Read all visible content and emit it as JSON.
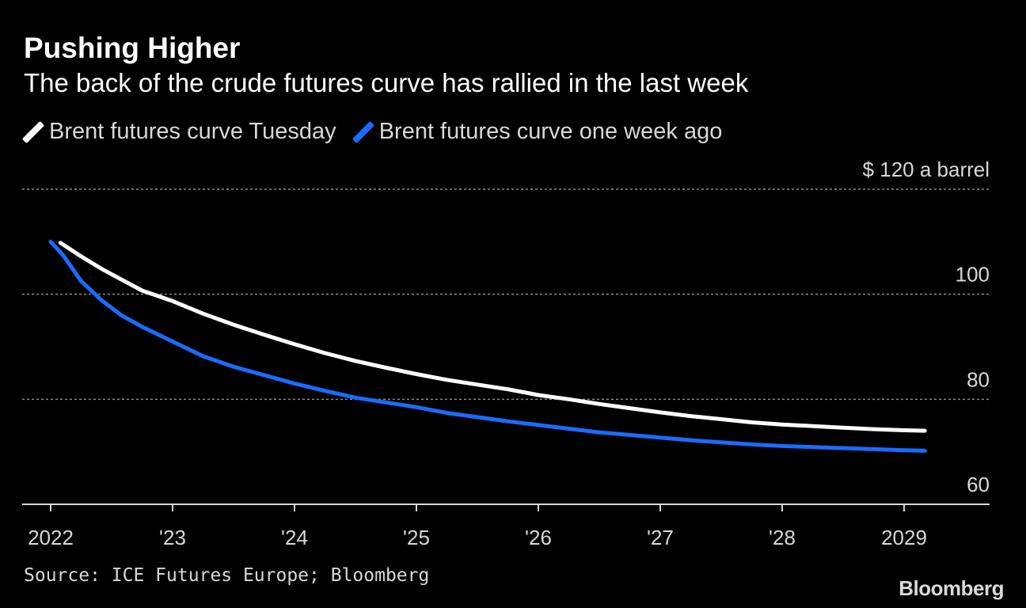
{
  "colors": {
    "background": "#000000",
    "series_tuesday": "#ffffff",
    "series_week_ago": "#1a6cff",
    "grid": "#8a8a8a",
    "axis": "#d8d8d8"
  },
  "source": "Source: ICE Futures Europe; Bloomberg",
  "brand": "Bloomberg",
  "chart_data": {
    "type": "line",
    "title": "Pushing Higher",
    "subtitle": "The back of the crude futures curve has rallied in the last week",
    "y_unit_label": "$ 120 a barrel",
    "ylim": [
      60,
      120
    ],
    "yticks": [
      60,
      80,
      100,
      120
    ],
    "ytick_labels": [
      "60",
      "80",
      "100",
      "$ 120 a barrel"
    ],
    "xlim": [
      2022.0,
      2029.55
    ],
    "xticks": [
      2022.0,
      2023.0,
      2024.0,
      2025.0,
      2026.0,
      2027.0,
      2028.0,
      2029.0
    ],
    "xtick_labels": [
      "2022",
      "'23",
      "'24",
      "'25",
      "'26",
      "'27",
      "'28",
      "2029"
    ],
    "grid": true,
    "legend_position": "top-left",
    "series": [
      {
        "name": "Brent futures curve Tuesday",
        "color": "#ffffff",
        "x": [
          2022.08,
          2022.25,
          2022.42,
          2022.58,
          2022.75,
          2023.0,
          2023.25,
          2023.5,
          2023.75,
          2024.0,
          2024.25,
          2024.5,
          2024.75,
          2025.0,
          2025.25,
          2025.5,
          2025.75,
          2026.0,
          2026.25,
          2026.5,
          2026.75,
          2027.0,
          2027.25,
          2027.5,
          2027.75,
          2028.0,
          2028.25,
          2028.5,
          2028.75,
          2029.0,
          2029.17
        ],
        "values": [
          109.8,
          107.2,
          104.8,
          102.8,
          100.7,
          98.7,
          96.3,
          94.2,
          92.3,
          90.5,
          88.8,
          87.3,
          86.0,
          84.8,
          83.7,
          82.8,
          81.9,
          80.8,
          80.0,
          79.1,
          78.3,
          77.5,
          76.8,
          76.2,
          75.6,
          75.2,
          74.9,
          74.6,
          74.3,
          74.1,
          74.0
        ]
      },
      {
        "name": "Brent futures curve one week ago",
        "color": "#1a6cff",
        "x": [
          2022.0,
          2022.1,
          2022.25,
          2022.42,
          2022.58,
          2022.75,
          2023.0,
          2023.25,
          2023.5,
          2023.75,
          2024.0,
          2024.25,
          2024.5,
          2024.75,
          2025.0,
          2025.25,
          2025.5,
          2025.75,
          2026.0,
          2026.25,
          2026.5,
          2026.75,
          2027.0,
          2027.25,
          2027.5,
          2027.75,
          2028.0,
          2028.25,
          2028.5,
          2028.75,
          2029.0,
          2029.17
        ],
        "values": [
          110.0,
          107.5,
          102.5,
          98.8,
          96.0,
          93.8,
          91.0,
          88.2,
          86.2,
          84.6,
          83.0,
          81.6,
          80.3,
          79.4,
          78.5,
          77.4,
          76.6,
          75.8,
          75.1,
          74.4,
          73.7,
          73.2,
          72.7,
          72.2,
          71.8,
          71.4,
          71.1,
          70.9,
          70.7,
          70.5,
          70.3,
          70.2
        ]
      }
    ]
  }
}
